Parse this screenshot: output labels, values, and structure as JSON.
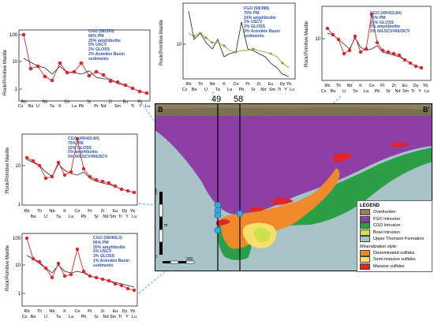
{
  "spider_panels": [
    {
      "id": "p1",
      "ylabel": "Rock/Primitive Mantle",
      "y_ticks": [
        1,
        10,
        100
      ],
      "x_top": [
        "Rb",
        "Nb",
        "Ce",
        "Sr",
        "Zr",
        "Eu",
        "Yb"
      ],
      "x_bottom": [
        "Ba",
        "U",
        "Ta",
        "K",
        "La",
        "Pb",
        "Pr",
        "Nd",
        "Sm",
        "Ti",
        "Y",
        "Lu"
      ],
      "x_bottom_lead": "Cs",
      "annotation": [
        "CGO (58/399)",
        "68% PM",
        "25% amphibolite",
        "5% USCV",
        "2% GLOSS",
        "2% Animikie Basin",
        "sediments"
      ]
    },
    {
      "id": "p2",
      "ylabel": "Rock/Primitive Mantle",
      "y_ticks": [
        10
      ],
      "x_top": [
        "Rb",
        "Th",
        "Nb",
        "K",
        "Ce",
        "Pr",
        "Zr",
        "Eu",
        "Dy",
        "Yb"
      ],
      "x_bottom": [
        "Cs",
        "Ba",
        "U",
        "Ta",
        "La",
        "Pb",
        "Sr",
        "Nd",
        "Sm",
        "Ti",
        "Y",
        "Lu"
      ],
      "annotation": [
        "FGO (58/388)",
        "70% PM",
        "24% amphibolite",
        "2% USCV",
        "2% GLOSS",
        "2% Animikie Basin",
        "sediments"
      ]
    },
    {
      "id": "p3",
      "ylabel": "Rock/Primitive Mantle",
      "y_ticks": [
        10
      ],
      "x_top": [
        "Rb",
        "Th",
        "Nb",
        "K",
        "Ce",
        "Pr",
        "Zr",
        "Eu",
        "Dy",
        "Yb"
      ],
      "x_bottom": [
        "Cs",
        "Ba",
        "U",
        "Ta",
        "La",
        "Pb",
        "Sr",
        "Nd",
        "Sm",
        "Ti",
        "Y",
        "Lu"
      ],
      "annotation": [
        "CGO (49/415.84)",
        "75% PM",
        "15% GLOSS",
        "5% amphibolite",
        "5% 60LSCV/40USCV"
      ]
    },
    {
      "id": "p4",
      "ylabel": "Rock/Primitive Mantle",
      "y_ticks": [
        1,
        10
      ],
      "x_top": [
        "Rb",
        "Th",
        "Nb",
        "K",
        "Ce",
        "Pr",
        "Zr",
        "Eu",
        "Dy",
        "Yb"
      ],
      "x_bottom": [
        "Ba",
        "U",
        "Ta",
        "La",
        "Pb",
        "Sr",
        "Nd",
        "Sm",
        "Ti",
        "Y",
        "Lu"
      ],
      "annotation": [
        "CGO (49/415.84)",
        "75% PM",
        "15% GLOSS",
        "5% amphibolite",
        "5% 60LSCV/40USCV"
      ]
    },
    {
      "id": "p5",
      "ylabel": "Rock/Primitive Mantle",
      "y_ticks": [
        1,
        10,
        100
      ],
      "x_top": [
        "Rb",
        "Th",
        "Nb",
        "K",
        "Ce",
        "Pr",
        "Zr",
        "Eu",
        "Dy",
        "Yb"
      ],
      "x_bottom": [
        "Cs",
        "Ba",
        "U",
        "Ta",
        "La",
        "Pb",
        "Sr",
        "Nd",
        "Sm",
        "Ti",
        "Y",
        "Lu"
      ],
      "annotation": [
        "CGO (58/465.3)",
        "66% PM",
        "25% amphibolite",
        "5% USCV",
        "3% GLOSS",
        "1% Animikie Basin",
        "sediments"
      ]
    }
  ],
  "section": {
    "end_left": "B",
    "end_right": "B'",
    "hole_labels": [
      "49",
      "58"
    ],
    "scale_values": [
      "200",
      "200"
    ],
    "scale_unit": "m",
    "scale_zero": "0"
  },
  "legend": {
    "title": "LEGEND",
    "units": [
      {
        "label": "Overburden",
        "color": "#8c8262"
      },
      {
        "label": "FGO Intrusion",
        "color": "#8e3fa6"
      },
      {
        "label": "CGO Intrusion",
        "color": "#2d9e48"
      },
      {
        "label": "Bowl Intrusion",
        "color": "#cfe24c"
      },
      {
        "label": "Upper Thomson Formation",
        "color": "#a7c3c8"
      }
    ],
    "style_title": "Mineralization style:",
    "styles": [
      {
        "label": "Disseminated sulfides",
        "color": "#ef8a2c"
      },
      {
        "label": "Semi-massive sulfides",
        "color": "#f7e16a"
      },
      {
        "label": "Massive sulfides",
        "color": "#e2232a"
      }
    ]
  },
  "colors": {
    "sample_red": "#e2232a",
    "model_black": "#222222",
    "fgo_olive": "#9aa028",
    "leader_blue": "#3aa6dd",
    "annotation_blue": "#2f55a4"
  }
}
